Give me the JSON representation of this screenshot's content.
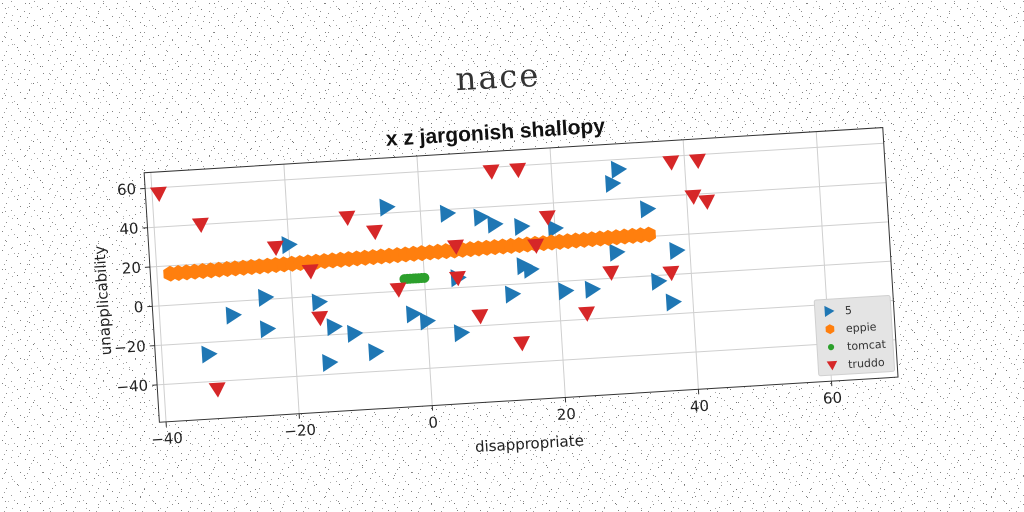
{
  "super_title": "nace",
  "chart_data": {
    "type": "scatter",
    "title": "x z jargonish shallopy",
    "xlabel": "disappropriate",
    "ylabel": "unapplicability",
    "xlim": [
      -41,
      70
    ],
    "ylim": [
      -59,
      68
    ],
    "xticks": [
      -40,
      -20,
      0,
      20,
      40,
      60
    ],
    "yticks": [
      -40,
      -20,
      0,
      20,
      40,
      60
    ],
    "grid": true,
    "legend_position": "lower-right",
    "series": [
      {
        "name": "5",
        "marker": "triangle-right",
        "color": "#1f77b4",
        "points": [
          [
            -33,
            -26
          ],
          [
            -29,
            -7
          ],
          [
            -24,
            1
          ],
          [
            -24,
            -15
          ],
          [
            -20,
            27
          ],
          [
            -16,
            -3
          ],
          [
            -15,
            -34
          ],
          [
            -14,
            -16
          ],
          [
            -11,
            -20
          ],
          [
            -8,
            -30
          ],
          [
            -5,
            43
          ],
          [
            -2,
            -12
          ],
          [
            0,
            -16
          ],
          [
            4,
            38
          ],
          [
            5,
            5
          ],
          [
            5,
            -23
          ],
          [
            9,
            35
          ],
          [
            11,
            31
          ],
          [
            13,
            -5
          ],
          [
            15,
            9
          ],
          [
            16,
            7
          ],
          [
            15,
            29
          ],
          [
            20,
            27
          ],
          [
            21,
            -5
          ],
          [
            25,
            -5
          ],
          [
            29,
            13
          ],
          [
            29,
            48
          ],
          [
            30,
            55
          ],
          [
            34,
            34
          ],
          [
            35,
            -3
          ],
          [
            37,
            -14
          ],
          [
            38,
            12
          ]
        ]
      },
      {
        "name": "eppie",
        "marker": "hexagon",
        "color": "#ff7f0e",
        "start": [
          -38,
          16
        ],
        "end": [
          34,
          21
        ],
        "count": 60
      },
      {
        "name": "tomcat",
        "marker": "circle",
        "color": "#2ca02c",
        "start": [
          -3,
          6
        ],
        "end": [
          0,
          6
        ],
        "count": 8
      },
      {
        "name": "truddo",
        "marker": "triangle-down",
        "color": "#d62728",
        "points": [
          [
            -39,
            57
          ],
          [
            -33,
            40
          ],
          [
            -32,
            -44
          ],
          [
            -22,
            26
          ],
          [
            -17,
            13
          ],
          [
            -16,
            -11
          ],
          [
            -11,
            39
          ],
          [
            -7,
            31
          ],
          [
            -4,
            1
          ],
          [
            5,
            5
          ],
          [
            5,
            21
          ],
          [
            8,
            -15
          ],
          [
            11,
            58
          ],
          [
            15,
            58
          ],
          [
            14,
            -30
          ],
          [
            17,
            19
          ],
          [
            19,
            33
          ],
          [
            24,
            -17
          ],
          [
            28,
            3
          ],
          [
            37,
            1
          ],
          [
            38,
            57
          ],
          [
            42,
            57
          ],
          [
            41,
            39
          ],
          [
            43,
            36
          ]
        ]
      }
    ]
  }
}
